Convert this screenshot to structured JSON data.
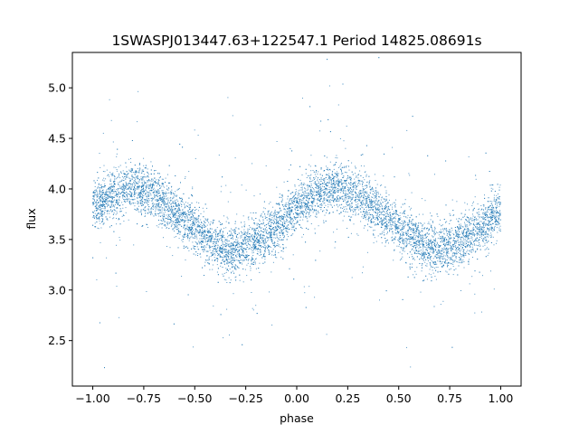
{
  "chart_data": {
    "type": "scatter",
    "title": "1SWASPJ013447.63+122547.1 Period 14825.08691s",
    "xlabel": "phase",
    "ylabel": "flux",
    "xlim": [
      -1.1,
      1.1
    ],
    "ylim": [
      2.05,
      5.35
    ],
    "xticks": [
      -1.0,
      -0.75,
      -0.5,
      -0.25,
      0.0,
      0.25,
      0.5,
      0.75,
      1.0
    ],
    "xtick_labels": [
      "−1.00",
      "−0.75",
      "−0.50",
      "−0.25",
      "0.00",
      "0.25",
      "0.50",
      "0.75",
      "1.00"
    ],
    "yticks": [
      2.5,
      3.0,
      3.5,
      4.0,
      4.5,
      5.0
    ],
    "ytick_labels": [
      "2.5",
      "3.0",
      "3.5",
      "4.0",
      "4.5",
      "5.0"
    ],
    "grid": false,
    "marker_color": "#1f77b4",
    "series": [
      {
        "x": [
          -1.0,
          -0.9,
          -0.8,
          -0.7,
          -0.6,
          -0.5,
          -0.4,
          -0.3,
          -0.2,
          -0.1,
          0.0,
          0.1,
          0.2,
          0.3,
          0.4,
          0.5,
          0.6,
          0.7,
          0.8,
          0.9,
          1.0
        ],
        "y": [
          3.82,
          3.95,
          4.02,
          3.95,
          3.78,
          3.6,
          3.45,
          3.38,
          3.48,
          3.62,
          3.8,
          3.95,
          4.02,
          3.95,
          3.78,
          3.6,
          3.45,
          3.38,
          3.48,
          3.62,
          3.8
        ]
      }
    ]
  }
}
